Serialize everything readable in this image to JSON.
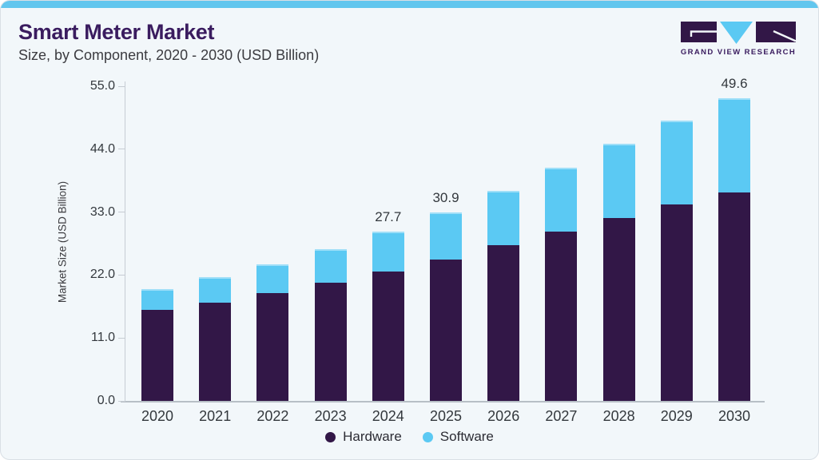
{
  "header": {
    "title": "Smart Meter Market",
    "subtitle": "Size, by Component, 2020 - 2030 (USD Billion)"
  },
  "logo": {
    "brand": "Grand View Research",
    "text": "GRAND VIEW RESEARCH"
  },
  "theme": {
    "accent_bar": "#62C6EE",
    "card_bg": "#F2F7FA",
    "title_color": "#3A1C5F",
    "axis_line": "#C6CCD3",
    "text_dark": "#33383D"
  },
  "chart_data": {
    "type": "bar",
    "stacked": true,
    "title": "Smart Meter Market Size, by Component, 2020 - 2030 (USD Billion)",
    "categories": [
      "2020",
      "2021",
      "2022",
      "2023",
      "2024",
      "2025",
      "2026",
      "2027",
      "2028",
      "2029",
      "2030"
    ],
    "series": [
      {
        "name": "Hardware",
        "color": "#321747",
        "values": [
          14.9,
          16.1,
          17.7,
          19.4,
          21.2,
          23.2,
          25.5,
          27.7,
          30.0,
          32.1,
          34.1
        ]
      },
      {
        "name": "Software",
        "color": "#5BC9F3",
        "values": [
          3.4,
          4.1,
          4.6,
          5.5,
          6.5,
          7.7,
          8.9,
          10.5,
          12.1,
          13.8,
          15.5
        ]
      }
    ],
    "data_labels": [
      {
        "category": "2024",
        "label": "27.7"
      },
      {
        "category": "2025",
        "label": "30.9"
      },
      {
        "category": "2030",
        "label": "49.6"
      }
    ],
    "ylabel": "Market Size (USD Billion)",
    "xlabel": "",
    "yticks": [
      "0.0",
      "11.0",
      "22.0",
      "33.0",
      "44.0",
      "55.0"
    ],
    "ylim": [
      0,
      55
    ],
    "grid": false,
    "legend_position": "bottom"
  }
}
